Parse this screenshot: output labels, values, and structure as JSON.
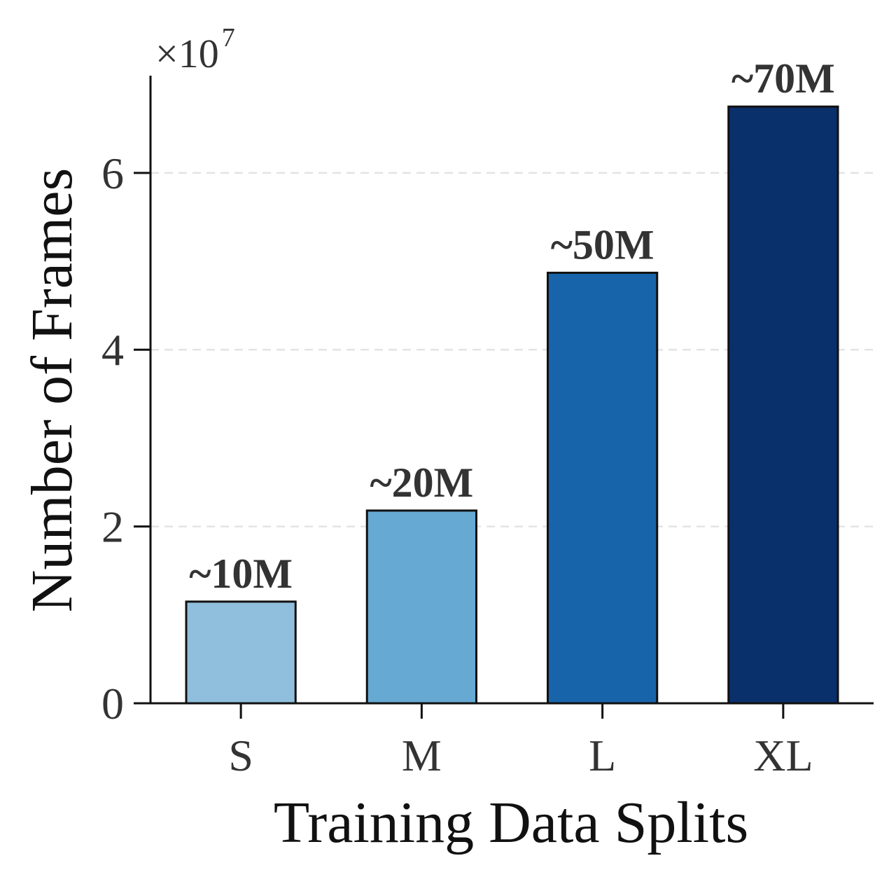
{
  "chart_data": {
    "type": "bar",
    "title": "",
    "xlabel": "Training Data Splits",
    "ylabel": "Number of Frames",
    "scale_multiplier": "×10",
    "scale_exponent": "7",
    "categories": [
      "S",
      "M",
      "L",
      "XL"
    ],
    "values": [
      1.15,
      2.18,
      4.87,
      6.75
    ],
    "data_labels": [
      "~10M",
      "~20M",
      "~50M",
      "~70M"
    ],
    "colors": [
      "#8fbfdd",
      "#66a9d3",
      "#1764aa",
      "#0a306b"
    ],
    "ylim": [
      0,
      7.1
    ],
    "yticks": [
      0,
      2,
      4,
      6
    ],
    "ytick_labels": [
      "0",
      "2",
      "4",
      "6"
    ],
    "grid": "horizontal dashed",
    "legend": "none"
  }
}
